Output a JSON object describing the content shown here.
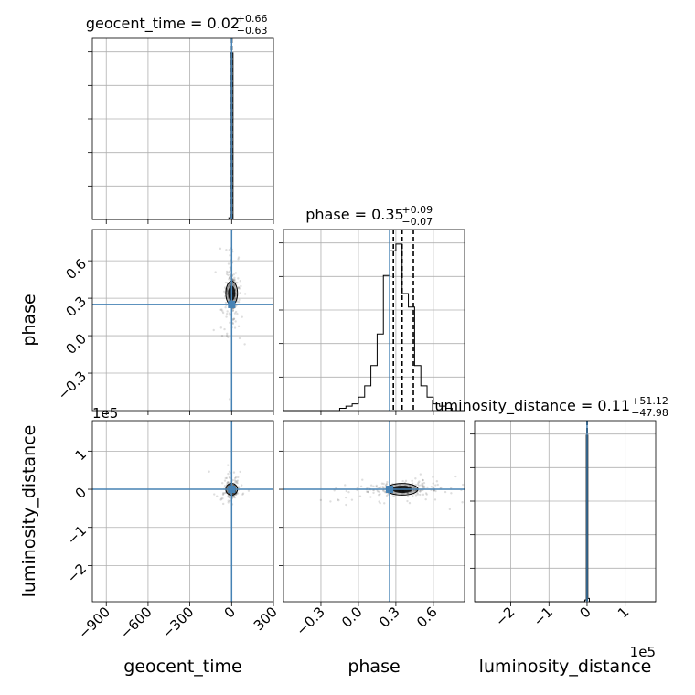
{
  "chart_data": {
    "type": "corner",
    "parameters": [
      "geocent_time",
      "phase",
      "luminosity_distance"
    ],
    "axis_offsets": {
      "luminosity_distance": "1e5"
    },
    "truths": {
      "geocent_time": 0,
      "phase": 0.25,
      "luminosity_distance": 0
    },
    "ranges": {
      "geocent_time": [
        -1000,
        300
      ],
      "phase": [
        -0.6,
        0.85
      ],
      "luminosity_distance": [
        -2.95,
        1.8
      ]
    },
    "ticks": {
      "geocent_time": [
        -900,
        -600,
        -300,
        0,
        300
      ],
      "phase": [
        -0.3,
        0.0,
        0.3,
        0.6
      ],
      "luminosity_distance": [
        -2,
        -1,
        0,
        1
      ]
    },
    "tick_labels": {
      "geocent_time": [
        "−900",
        "−600",
        "−300",
        "0",
        "300"
      ],
      "phase": [
        "−0.3",
        "0.0",
        "0.3",
        "0.6"
      ],
      "luminosity_distance": [
        "−2",
        "−1",
        "0",
        "1"
      ]
    },
    "titles": [
      {
        "param": "geocent_time",
        "text": "geocent_time = 0.02",
        "plus": "+0.66",
        "minus": "−0.63"
      },
      {
        "param": "phase",
        "text": "phase = 0.35",
        "plus": "+0.09",
        "minus": "−0.07"
      },
      {
        "param": "luminosity_distance",
        "text": "luminosity_distance = 0.11",
        "plus": "+51.12",
        "minus": "−47.98"
      }
    ],
    "quantiles": {
      "geocent_time": [
        -0.61,
        0.02,
        0.68
      ],
      "phase": [
        0.28,
        0.35,
        0.44
      ],
      "luminosity_distance": [
        -0.0005,
        0.0,
        0.0005
      ]
    },
    "histograms": {
      "geocent_time": {
        "edges": [
          -1000,
          -20,
          -10,
          10,
          20,
          300
        ],
        "values": [
          0.0,
          0.01,
          1.0,
          0.0,
          0.0
        ]
      },
      "phase": {
        "edges": [
          -0.6,
          -0.15,
          -0.1,
          -0.05,
          0.0,
          0.05,
          0.1,
          0.15,
          0.2,
          0.25,
          0.3,
          0.35,
          0.4,
          0.45,
          0.5,
          0.55,
          0.6,
          0.65,
          0.7,
          0.75,
          0.85
        ],
        "values": [
          0.0,
          0.01,
          0.02,
          0.03,
          0.06,
          0.11,
          0.2,
          0.34,
          0.6,
          0.71,
          0.74,
          0.52,
          0.46,
          0.2,
          0.11,
          0.06,
          0.03,
          0.02,
          0.01,
          0.0
        ]
      },
      "luminosity_distance": {
        "edges": [
          -2.95,
          -0.06,
          -0.02,
          0.02,
          0.06,
          1.8
        ],
        "values": [
          0.0,
          0.01,
          1.0,
          0.02,
          0.0
        ]
      }
    },
    "contours": [
      {
        "x": "geocent_time",
        "y": "phase",
        "cx": 0,
        "cy": 0.34,
        "sx": 12,
        "sy": 0.06
      },
      {
        "x": "geocent_time",
        "y": "luminosity_distance",
        "cx": 0,
        "cy": 0,
        "sx": 12,
        "sy": 0.06
      },
      {
        "x": "phase",
        "y": "luminosity_distance",
        "cx": 0.35,
        "cy": 0,
        "sx": 0.08,
        "sy": 0.05
      }
    ],
    "grid": true
  }
}
